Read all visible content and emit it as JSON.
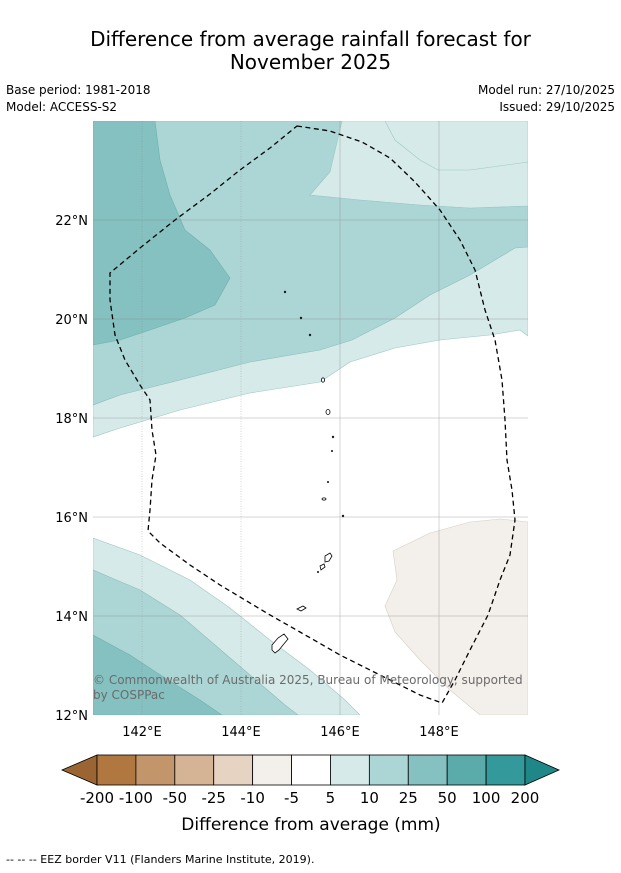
{
  "title_line1": "Difference from average rainfall forecast for",
  "title_line2": "November 2025",
  "base_period": "Base period: 1981-2018",
  "model": "Model: ACCESS-S2",
  "model_run": "Model run: 27/10/2025",
  "issued": "Issued: 29/10/2025",
  "copyright_line1": "© Commonwealth of Australia 2025, Bureau of Meteorology, supported",
  "copyright_line2": "by COSPPac",
  "lat_labels": [
    "22°N",
    "20°N",
    "18°N",
    "16°N",
    "14°N",
    "12°N"
  ],
  "lon_labels": [
    "142°E",
    "144°E",
    "146°E",
    "148°E"
  ],
  "colorbar": {
    "title": "Difference from average (mm)",
    "tick_labels": [
      "-200",
      "-100",
      "-50",
      "-25",
      "-10",
      "-5",
      "5",
      "10",
      "25",
      "50",
      "100",
      "200"
    ],
    "colors": [
      "#b07840",
      "#c2956a",
      "#d4b494",
      "#e6d3c2",
      "#f3efea",
      "#ffffff",
      "#d6eae9",
      "#acd6d5",
      "#84c1c0",
      "#5babab",
      "#33999a"
    ],
    "extend_low_color": "#9b6533",
    "extend_high_color": "#1f8788"
  },
  "footnote": "--  --  -- EEZ border V11 (Flanders Marine Institute, 2019)."
}
